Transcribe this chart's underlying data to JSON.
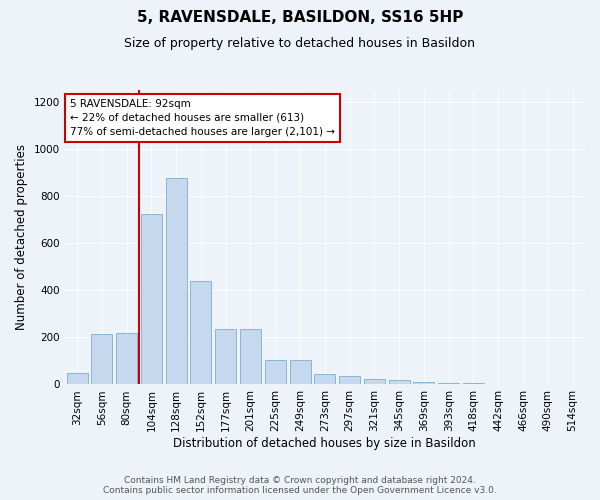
{
  "title": "5, RAVENSDALE, BASILDON, SS16 5HP",
  "subtitle": "Size of property relative to detached houses in Basildon",
  "xlabel": "Distribution of detached houses by size in Basildon",
  "ylabel": "Number of detached properties",
  "categories": [
    "32sqm",
    "56sqm",
    "80sqm",
    "104sqm",
    "128sqm",
    "152sqm",
    "177sqm",
    "201sqm",
    "225sqm",
    "249sqm",
    "273sqm",
    "297sqm",
    "321sqm",
    "345sqm",
    "369sqm",
    "393sqm",
    "418sqm",
    "442sqm",
    "466sqm",
    "490sqm",
    "514sqm"
  ],
  "values": [
    50,
    215,
    220,
    725,
    875,
    440,
    235,
    235,
    105,
    105,
    45,
    35,
    25,
    20,
    10,
    5,
    5,
    0,
    0,
    0,
    0
  ],
  "bar_color": "#c5d8ed",
  "bar_edge_color": "#7aafd4",
  "annotation_box_text": "5 RAVENSDALE: 92sqm\n← 22% of detached houses are smaller (613)\n77% of semi-detached houses are larger (2,101) →",
  "annotation_box_color": "#ffffff",
  "annotation_box_edge_color": "#cc0000",
  "red_line_color": "#cc0000",
  "ylim": [
    0,
    1250
  ],
  "yticks": [
    0,
    200,
    400,
    600,
    800,
    1000,
    1200
  ],
  "footer_line1": "Contains HM Land Registry data © Crown copyright and database right 2024.",
  "footer_line2": "Contains public sector information licensed under the Open Government Licence v3.0.",
  "bg_color": "#eef2f9",
  "plot_bg_color": "#eef2f9",
  "title_fontsize": 11,
  "subtitle_fontsize": 9,
  "axis_label_fontsize": 8.5,
  "tick_fontsize": 7.5,
  "footer_fontsize": 6.5,
  "red_line_x": 2.5
}
